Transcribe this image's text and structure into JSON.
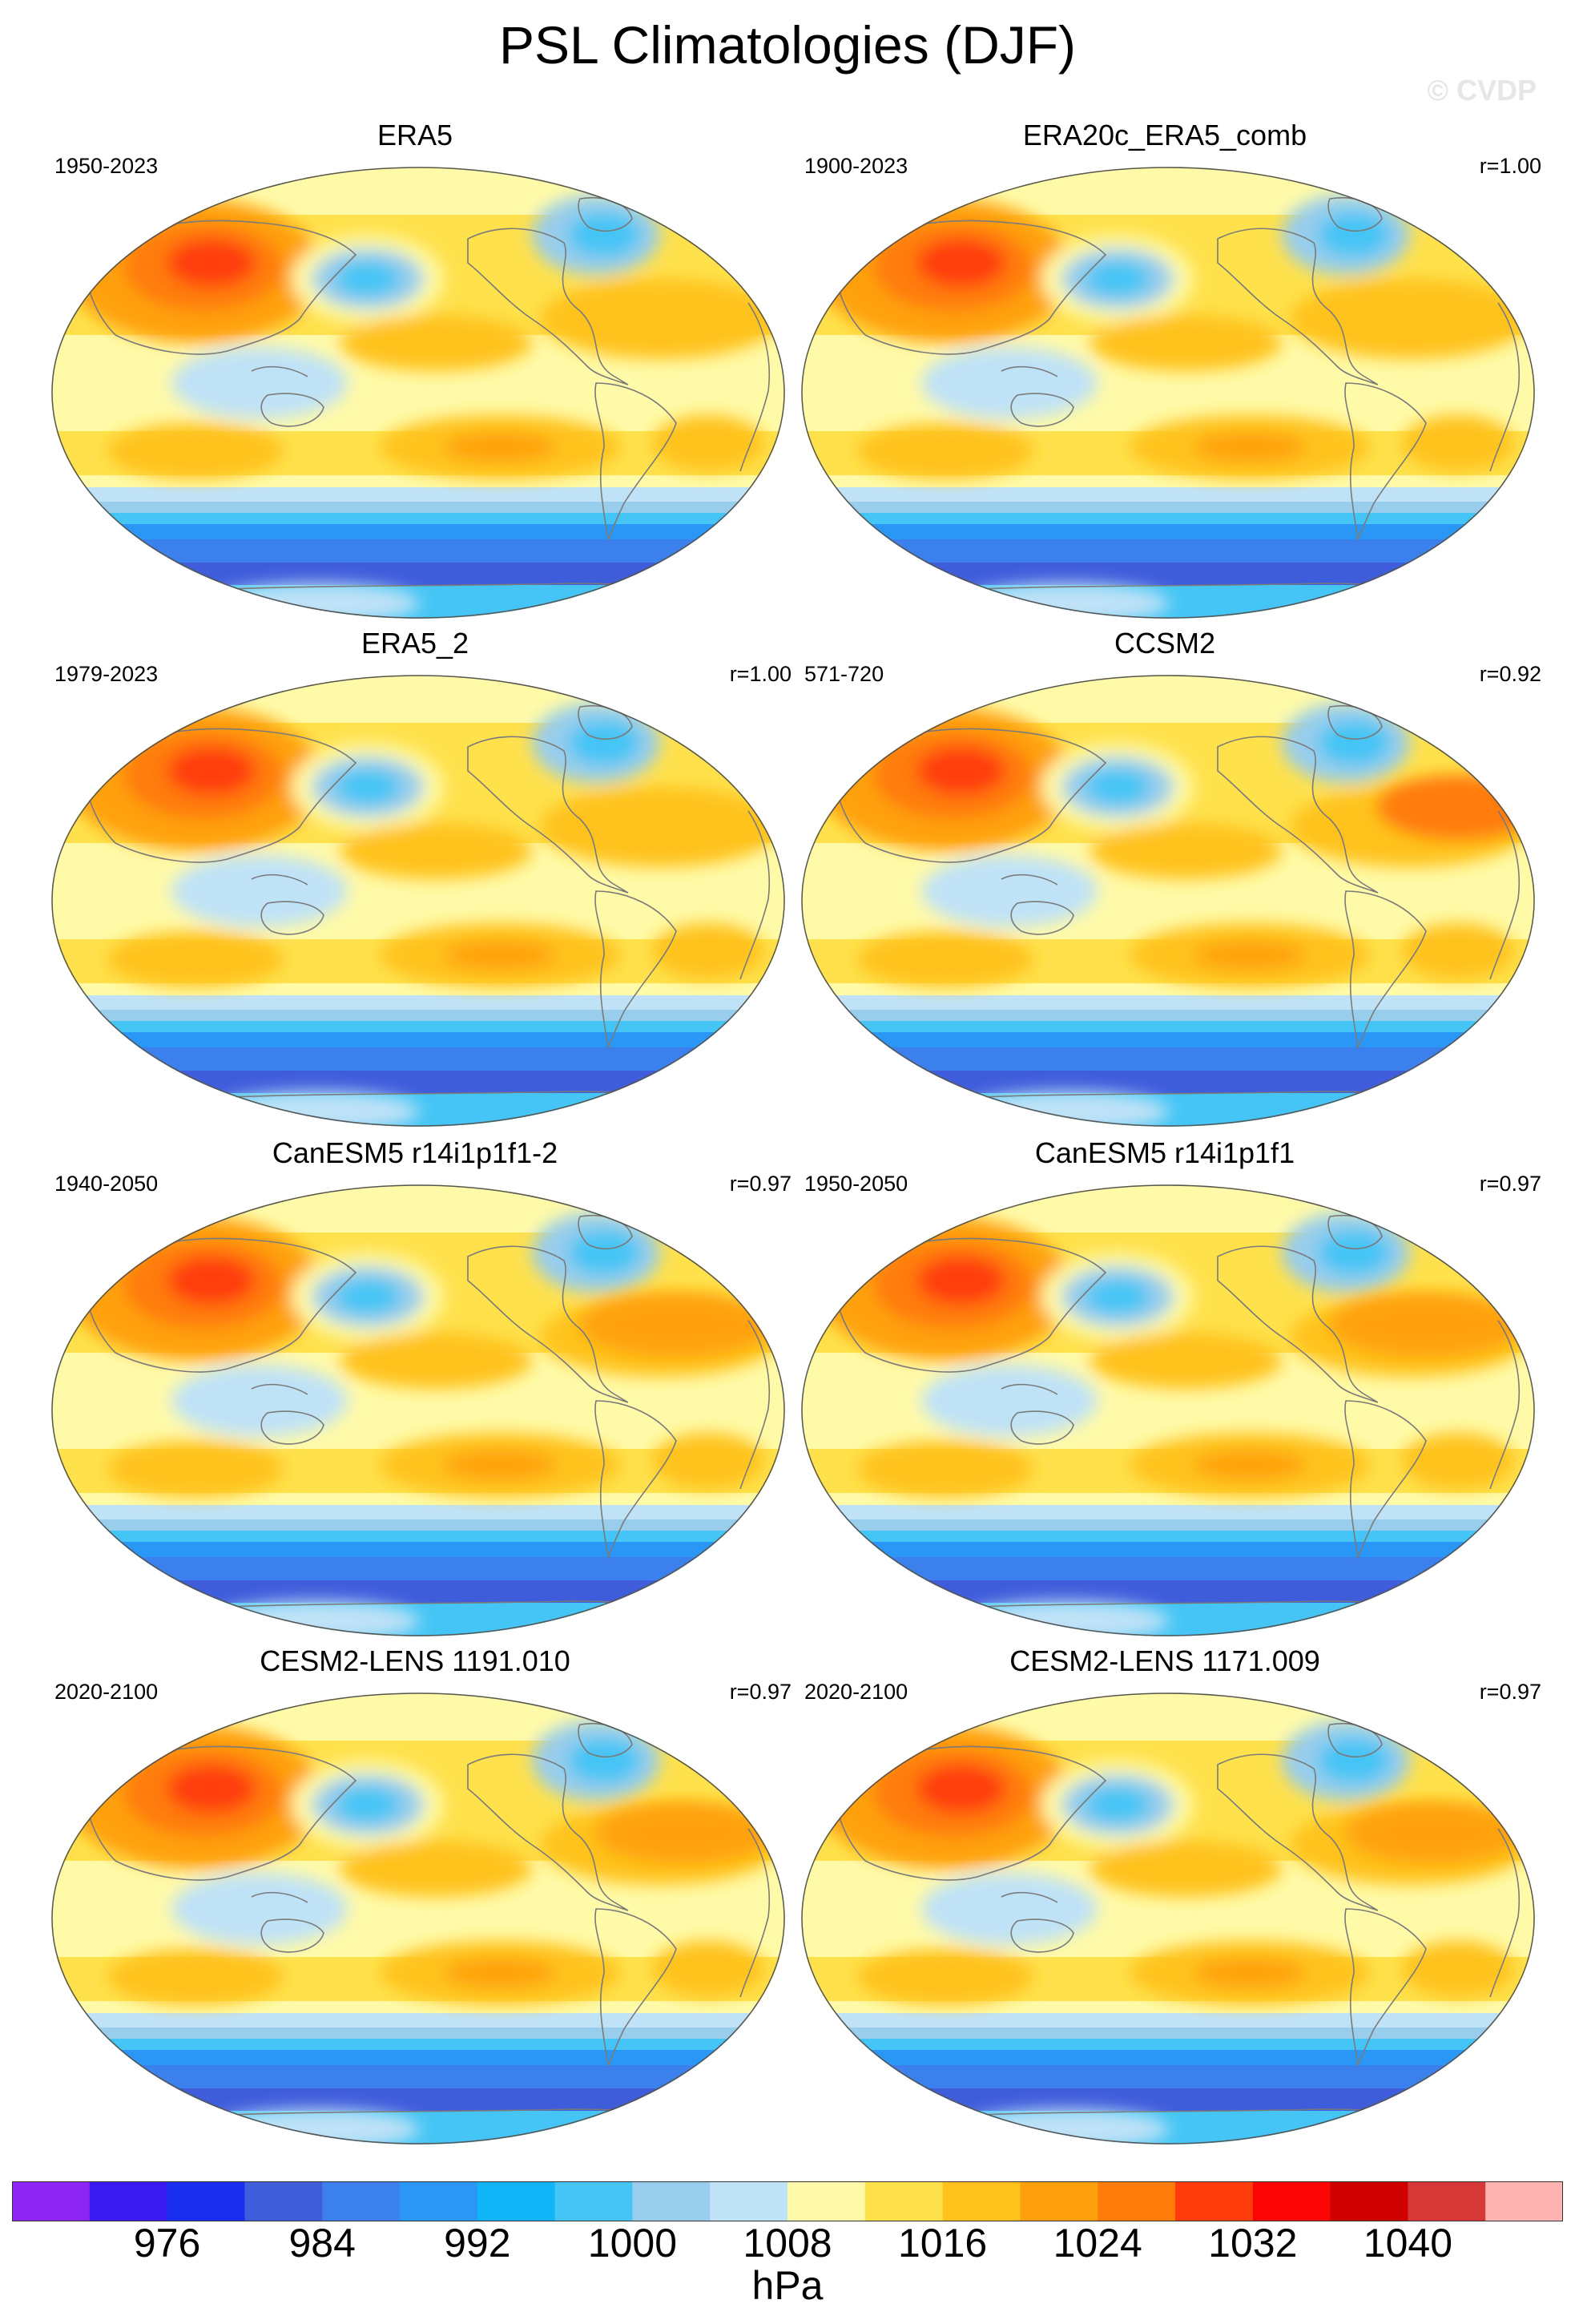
{
  "figure": {
    "title": "PSL Climatologies (DJF)",
    "watermark": "© CVDP"
  },
  "panels": [
    {
      "title": "ERA5",
      "period": "1950-2023",
      "r": ""
    },
    {
      "title": "ERA20c_ERA5_comb",
      "period": "1900-2023",
      "r": "r=1.00"
    },
    {
      "title": "ERA5_2",
      "period": "1979-2023",
      "r": "r=1.00"
    },
    {
      "title": "CCSM2",
      "period": "571-720",
      "r": "r=0.92"
    },
    {
      "title": "CanESM5 r14i1p1f1-2",
      "period": "1940-2050",
      "r": "r=0.97"
    },
    {
      "title": "CanESM5 r14i1p1f1",
      "period": "1950-2050",
      "r": "r=0.97"
    },
    {
      "title": "CESM2-LENS 1191.010",
      "period": "2020-2100",
      "r": "r=0.97"
    },
    {
      "title": "CESM2-LENS 1171.009",
      "period": "2020-2100",
      "r": "r=0.97"
    }
  ],
  "colorbar": {
    "unit": "hPa",
    "tick_labels": [
      "976",
      "984",
      "992",
      "1000",
      "1008",
      "1016",
      "1024",
      "1032",
      "1040"
    ],
    "tick_values": [
      976,
      984,
      992,
      1000,
      1008,
      1016,
      1024,
      1032,
      1040
    ],
    "levels": [
      972,
      976,
      980,
      984,
      988,
      992,
      996,
      1000,
      1004,
      1008,
      1012,
      1016,
      1020,
      1024,
      1028,
      1032,
      1036,
      1040
    ],
    "colors": [
      "#8d26f2",
      "#3b1af2",
      "#1a2ef0",
      "#3f5cdb",
      "#3b80ec",
      "#2a96f5",
      "#12b4f8",
      "#44c5f5",
      "#98cdec",
      "#bfe2f7",
      "#fffaa8",
      "#ffe14c",
      "#ffc21d",
      "#ffa10f",
      "#ff7c0a",
      "#ff3d0c",
      "#fc0505",
      "#cf0000",
      "#d63838",
      "#ffb3b3"
    ]
  }
}
